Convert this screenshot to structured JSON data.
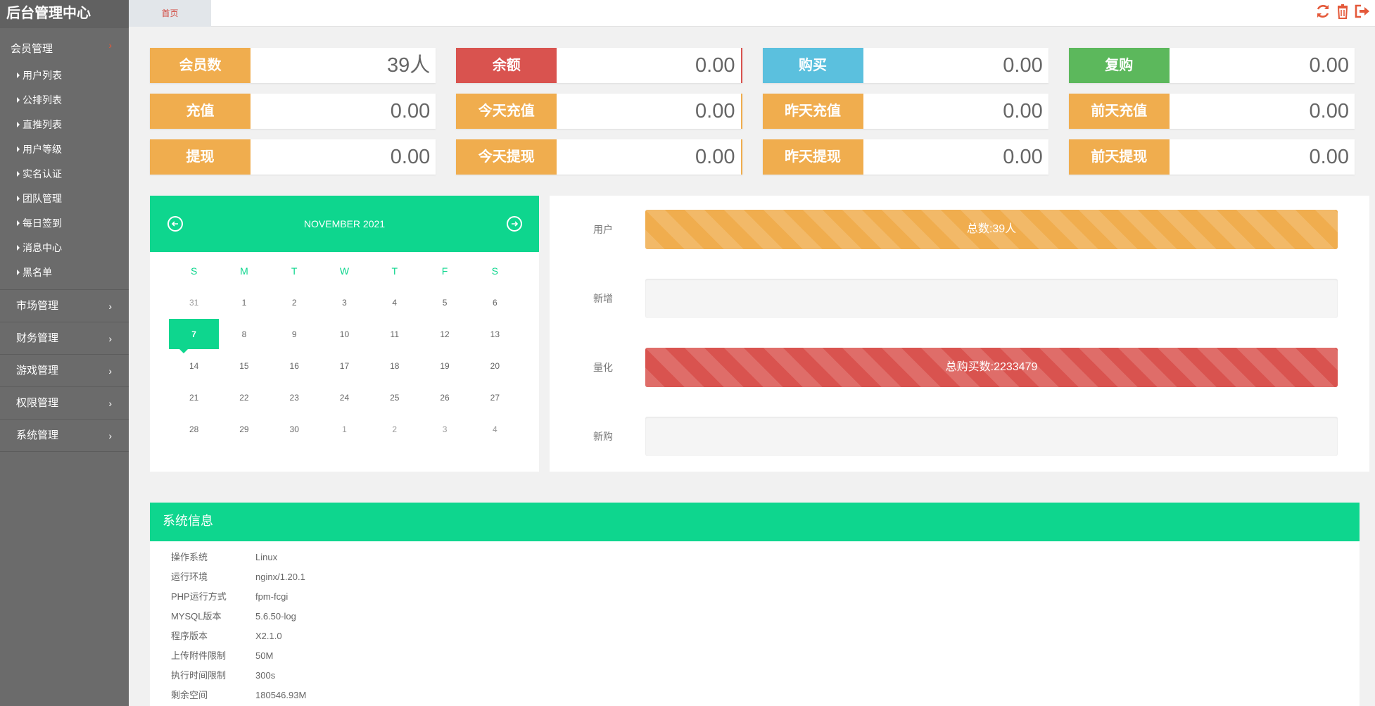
{
  "sidebar": {
    "brand": "后台管理中心",
    "member_group": {
      "label": "会员管理",
      "items": [
        "用户列表",
        "公排列表",
        "直推列表",
        "用户等级",
        "实名认证",
        "团队管理",
        "每日签到",
        "消息中心",
        "黑名单"
      ]
    },
    "groups": [
      "市场管理",
      "财务管理",
      "游戏管理",
      "权限管理",
      "系统管理"
    ]
  },
  "topbar": {
    "home_tab": "首页",
    "icons": [
      "refresh-icon",
      "trash-icon",
      "logout-icon"
    ],
    "icon_color": "#e4593a"
  },
  "stats": [
    [
      {
        "label": "会员数",
        "value": "39人",
        "color": "#f0ad4e"
      },
      {
        "label": "余额",
        "value": "0.00",
        "color": "#d9534f"
      },
      {
        "label": "购买",
        "value": "0.00",
        "color": "#5bc0de"
      },
      {
        "label": "复购",
        "value": "0.00",
        "color": "#5cb85c"
      }
    ],
    [
      {
        "label": "充值",
        "value": "0.00",
        "color": "#f0ad4e"
      },
      {
        "label": "今天充值",
        "value": "0.00",
        "color": "#f0ad4e"
      },
      {
        "label": "昨天充值",
        "value": "0.00",
        "color": "#f0ad4e"
      },
      {
        "label": "前天充值",
        "value": "0.00",
        "color": "#f0ad4e"
      }
    ],
    [
      {
        "label": "提现",
        "value": "0.00",
        "color": "#f0ad4e"
      },
      {
        "label": "今天提现",
        "value": "0.00",
        "color": "#f0ad4e"
      },
      {
        "label": "昨天提现",
        "value": "0.00",
        "color": "#f0ad4e"
      },
      {
        "label": "前天提现",
        "value": "0.00",
        "color": "#f0ad4e"
      }
    ]
  ],
  "calendar": {
    "month_label": "NOVEMBER 2021",
    "weekdays": [
      "S",
      "M",
      "T",
      "W",
      "T",
      "F",
      "S"
    ],
    "weeks": [
      [
        "31",
        "1",
        "2",
        "3",
        "4",
        "5",
        "6"
      ],
      [
        "7",
        "8",
        "9",
        "10",
        "11",
        "12",
        "13"
      ],
      [
        "14",
        "15",
        "16",
        "17",
        "18",
        "19",
        "20"
      ],
      [
        "21",
        "22",
        "23",
        "24",
        "25",
        "26",
        "27"
      ],
      [
        "28",
        "29",
        "30",
        "1",
        "2",
        "3",
        "4"
      ]
    ],
    "today": "7",
    "accent": "#0ed68e"
  },
  "progress": [
    {
      "label": "用户",
      "text": "总数:39人",
      "percent": 100,
      "color": "orange"
    },
    {
      "label": "新增",
      "text": "",
      "percent": 0,
      "color": "orange"
    },
    {
      "label": "量化",
      "text": "总购买数:2233479",
      "percent": 100,
      "color": "red"
    },
    {
      "label": "新购",
      "text": "",
      "percent": 0,
      "color": "red"
    }
  ],
  "sysinfo": {
    "title": "系统信息",
    "rows": [
      {
        "k": "操作系统",
        "v": "Linux"
      },
      {
        "k": "运行环境",
        "v": "nginx/1.20.1"
      },
      {
        "k": "PHP运行方式",
        "v": "fpm-fcgi"
      },
      {
        "k": "MYSQL版本",
        "v": "5.6.50-log"
      },
      {
        "k": "程序版本",
        "v": "X2.1.0"
      },
      {
        "k": "上传附件限制",
        "v": "50M"
      },
      {
        "k": "执行时间限制",
        "v": "300s"
      },
      {
        "k": "剩余空间",
        "v": "180546.93M"
      }
    ]
  }
}
